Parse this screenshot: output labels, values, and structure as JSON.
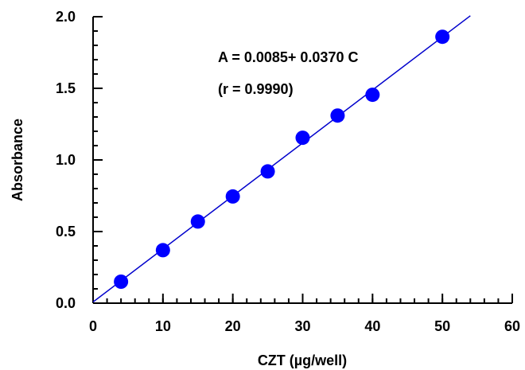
{
  "chart_data": {
    "type": "scatter",
    "title": "",
    "xlabel": "CZT (µg/well)",
    "ylabel": "Absorbance",
    "xlim": [
      0,
      60
    ],
    "ylim": [
      0,
      2.0
    ],
    "x_ticks": [
      0,
      10,
      20,
      30,
      40,
      50,
      60
    ],
    "y_ticks": [
      0.0,
      0.5,
      1.0,
      1.5,
      2.0
    ],
    "x_tick_labels": [
      "0",
      "10",
      "20",
      "30",
      "40",
      "50",
      "60"
    ],
    "y_tick_labels": [
      "0.0",
      "0.5",
      "1.0",
      "1.5",
      "2.0"
    ],
    "x_minor_step": 2,
    "y_minor_step": 0.1,
    "grid": false,
    "series": [
      {
        "x": [
          4,
          10,
          15,
          20,
          25,
          30,
          35,
          40,
          50
        ],
        "y": [
          0.15,
          0.37,
          0.57,
          0.745,
          0.92,
          1.155,
          1.31,
          1.455,
          1.86
        ],
        "color": "#0000ff"
      }
    ],
    "fit_line": {
      "intercept": 0.0085,
      "slope": 0.037,
      "x_range": [
        0,
        54
      ],
      "color": "#0000cc"
    },
    "annotations": [
      "A = 0.0085+ 0.0370 C",
      "(r = 0.9990)"
    ]
  }
}
